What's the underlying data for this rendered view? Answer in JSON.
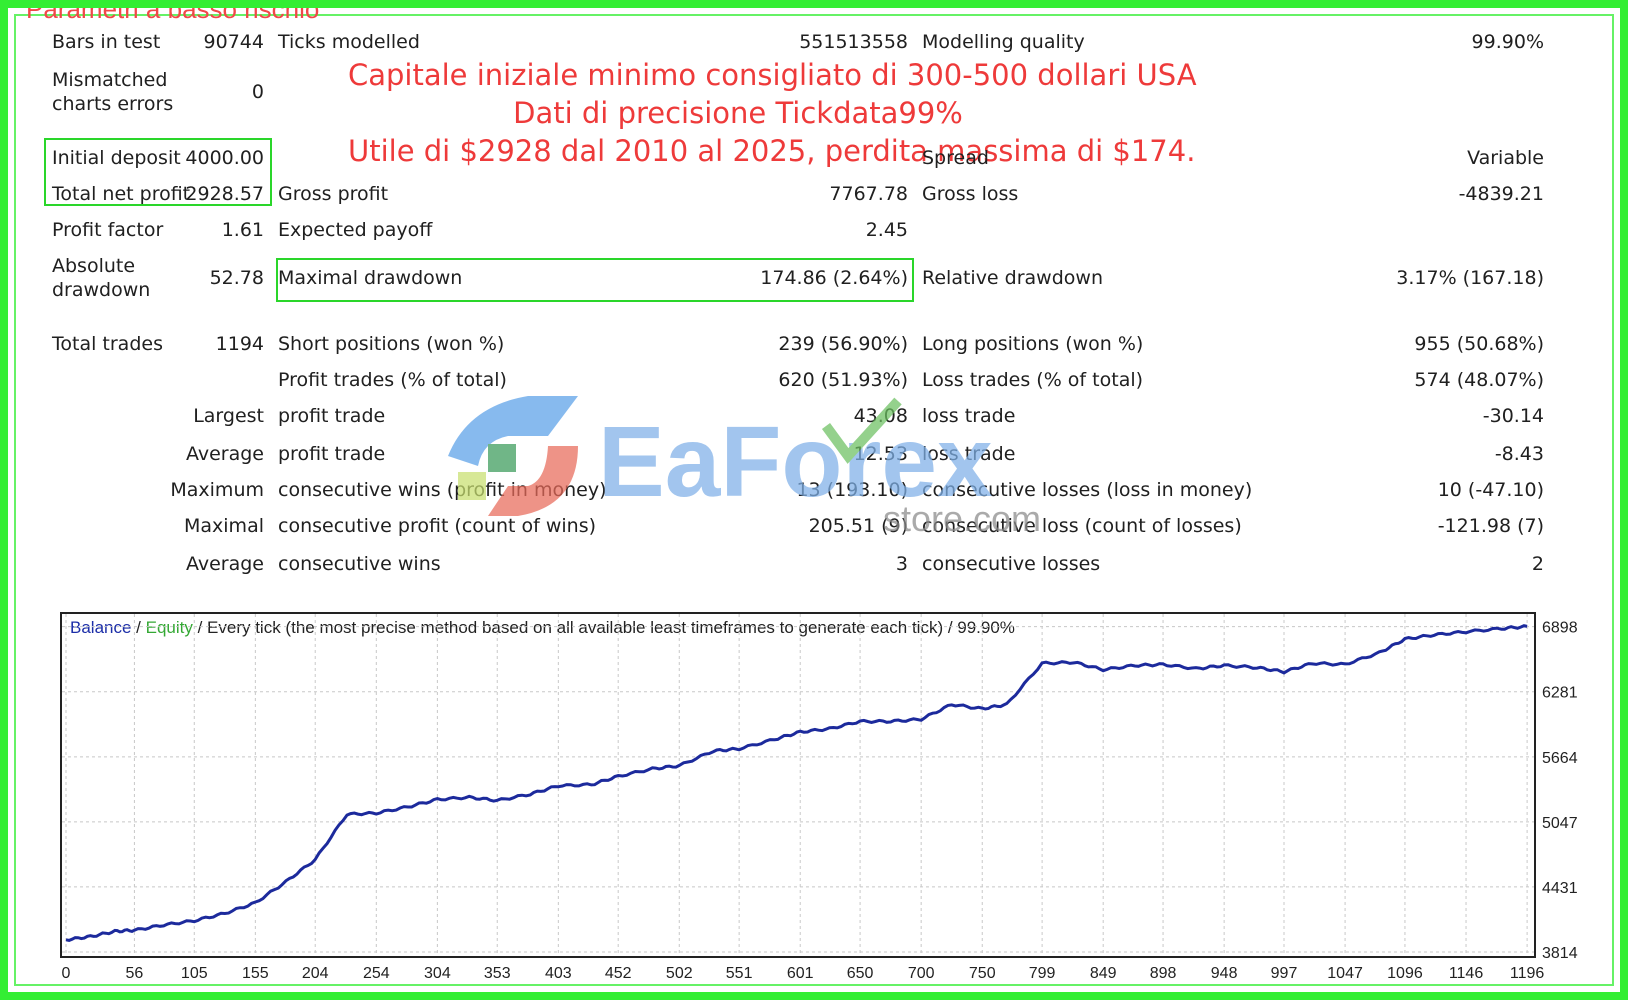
{
  "caption": "Parametri a basso rischio",
  "notes": [
    "Capitale iniziale minimo consigliato di 300-500 dollari USA",
    "Dati di precisione Tickdata99%",
    "Utile di $2928 dal 2010 al 2025, perdita massima di $174."
  ],
  "report": {
    "bars_in_test_label": "Bars in test",
    "bars_in_test": "90744",
    "ticks_modelled_label": "Ticks modelled",
    "ticks_modelled": "551513558",
    "modelling_quality_label": "Modelling quality",
    "modelling_quality": "99.90%",
    "mismatched_label_1": "Mismatched",
    "mismatched_label_2": "charts errors",
    "mismatched": "0",
    "initial_deposit_label": "Initial deposit",
    "initial_deposit": "4000.00",
    "spread_label": "Spread",
    "spread": "Variable",
    "total_net_profit_label": "Total net profit",
    "total_net_profit": "2928.57",
    "gross_profit_label": "Gross profit",
    "gross_profit": "7767.78",
    "gross_loss_label": "Gross loss",
    "gross_loss": "-4839.21",
    "profit_factor_label": "Profit factor",
    "profit_factor": "1.61",
    "expected_payoff_label": "Expected payoff",
    "expected_payoff": "2.45",
    "absolute_drawdown_label_1": "Absolute",
    "absolute_drawdown_label_2": "drawdown",
    "absolute_drawdown": "52.78",
    "maximal_drawdown_label": "Maximal drawdown",
    "maximal_drawdown": "174.86 (2.64%)",
    "relative_drawdown_label": "Relative drawdown",
    "relative_drawdown": "3.17% (167.18)",
    "total_trades_label": "Total trades",
    "total_trades": "1194",
    "short_positions_label": "Short positions (won %)",
    "short_positions": "239 (56.90%)",
    "long_positions_label": "Long positions (won %)",
    "long_positions": "955 (50.68%)",
    "profit_trades_label": "Profit trades (% of total)",
    "profit_trades": "620 (51.93%)",
    "loss_trades_label": "Loss trades (% of total)",
    "loss_trades": "574 (48.07%)",
    "largest_label": "Largest",
    "largest_profit_label": "profit trade",
    "largest_profit": "43.08",
    "largest_loss_label": "loss trade",
    "largest_loss": "-30.14",
    "average_label": "Average",
    "average_profit_label": "profit trade",
    "average_profit": "12.53",
    "average_loss_label": "loss trade",
    "average_loss": "-8.43",
    "maximum_label": "Maximum",
    "max_cons_wins_label": "consecutive wins (profit in money)",
    "max_cons_wins": "13 (193.10)",
    "max_cons_losses_label": "consecutive losses (loss in money)",
    "max_cons_losses": "10 (-47.10)",
    "maximal_label": "Maximal",
    "maximal_cons_profit_label": "consecutive profit (count of wins)",
    "maximal_cons_profit": "205.51 (9)",
    "maximal_cons_loss_label": "consecutive loss (count of losses)",
    "maximal_cons_loss": "-121.98 (7)",
    "average2_label": "Average",
    "avg_cons_wins_label": "consecutive wins",
    "avg_cons_wins": "3",
    "avg_cons_losses_label": "consecutive losses",
    "avg_cons_losses": "2"
  },
  "chart_header": {
    "balance": "Balance",
    "sep1": " / ",
    "equity": "Equity",
    "rest": " / Every tick (the most precise method based on all available least timeframes to generate each tick) / 99.90%"
  },
  "watermark": {
    "brand": "EaForex",
    "sub": "store.com"
  },
  "chart_data": {
    "type": "line",
    "series": [
      {
        "name": "Balance",
        "x": [
          0,
          20,
          40,
          56,
          80,
          105,
          130,
          155,
          180,
          204,
          230,
          254,
          280,
          304,
          330,
          353,
          380,
          403,
          430,
          452,
          480,
          502,
          530,
          551,
          580,
          601,
          625,
          650,
          675,
          700,
          725,
          750,
          770,
          799,
          825,
          849,
          875,
          898,
          925,
          948,
          975,
          997,
          1020,
          1047,
          1075,
          1096,
          1120,
          1146,
          1175,
          1196
        ],
        "y": [
          3930,
          3960,
          4010,
          4020,
          4070,
          4110,
          4180,
          4280,
          4480,
          4690,
          5120,
          5130,
          5190,
          5260,
          5280,
          5250,
          5310,
          5390,
          5400,
          5480,
          5550,
          5580,
          5720,
          5740,
          5830,
          5900,
          5930,
          6000,
          6000,
          6020,
          6160,
          6120,
          6160,
          6550,
          6560,
          6490,
          6530,
          6540,
          6500,
          6530,
          6510,
          6470,
          6550,
          6540,
          6650,
          6780,
          6820,
          6850,
          6880,
          6900
        ]
      }
    ],
    "x_ticks": [
      0,
      56,
      105,
      155,
      204,
      254,
      304,
      353,
      403,
      452,
      502,
      551,
      601,
      650,
      700,
      750,
      799,
      849,
      898,
      948,
      997,
      1047,
      1096,
      1146,
      1196
    ],
    "y_ticks": [
      3814,
      4431,
      5047,
      5664,
      6281,
      6898
    ],
    "xlim": [
      0,
      1200
    ],
    "ylim": [
      3814,
      6980
    ],
    "grid": true,
    "colors": {
      "balance": "#1c2a9c",
      "grid": "#c8c8c8"
    }
  }
}
